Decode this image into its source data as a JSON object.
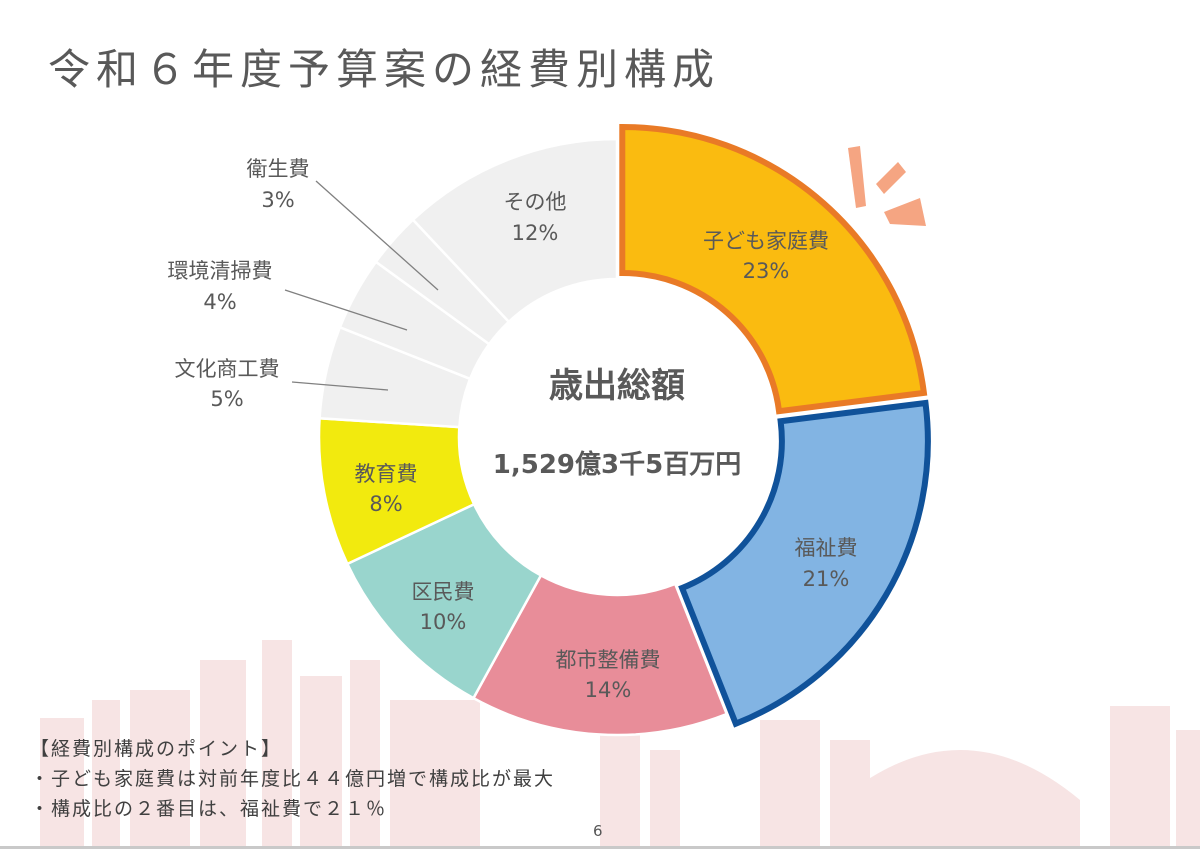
{
  "page": {
    "title": "令和６年度予算案の経費別構成",
    "page_number": "6"
  },
  "chart_data": {
    "type": "donut",
    "title": "",
    "center_label": "歳出総額",
    "center_value": "1,529億3千5百万円",
    "slices": [
      {
        "label": "子ども家庭費",
        "percent_label": "23%",
        "value": 23,
        "color": "#FABB10",
        "highlight": "#E97A26"
      },
      {
        "label": "福祉費",
        "percent_label": "21%",
        "value": 21,
        "color": "#82B4E3",
        "highlight": "#10529A"
      },
      {
        "label": "都市整備費",
        "percent_label": "14%",
        "value": 14,
        "color": "#E88D99"
      },
      {
        "label": "区民費",
        "percent_label": "10%",
        "value": 10,
        "color": "#99D5CD"
      },
      {
        "label": "教育費",
        "percent_label": "8%",
        "value": 8,
        "color": "#F2EA0E"
      },
      {
        "label": "文化商工費",
        "percent_label": "5%",
        "value": 5,
        "color": "#F0F0F0"
      },
      {
        "label": "環境清掃費",
        "percent_label": "4%",
        "value": 4,
        "color": "#F0F0F0"
      },
      {
        "label": "衛生費",
        "percent_label": "3%",
        "value": 3,
        "color": "#F0F0F0"
      },
      {
        "label": "その他",
        "percent_label": "12%",
        "value": 12,
        "color": "#F0F0F0"
      }
    ]
  },
  "points": {
    "heading": "【経費別構成のポイント】",
    "items": [
      "・子ども家庭費は対前年度比４４億円増で構成比が最大",
      "・構成比の２番目は、福祉費で２１％"
    ]
  }
}
